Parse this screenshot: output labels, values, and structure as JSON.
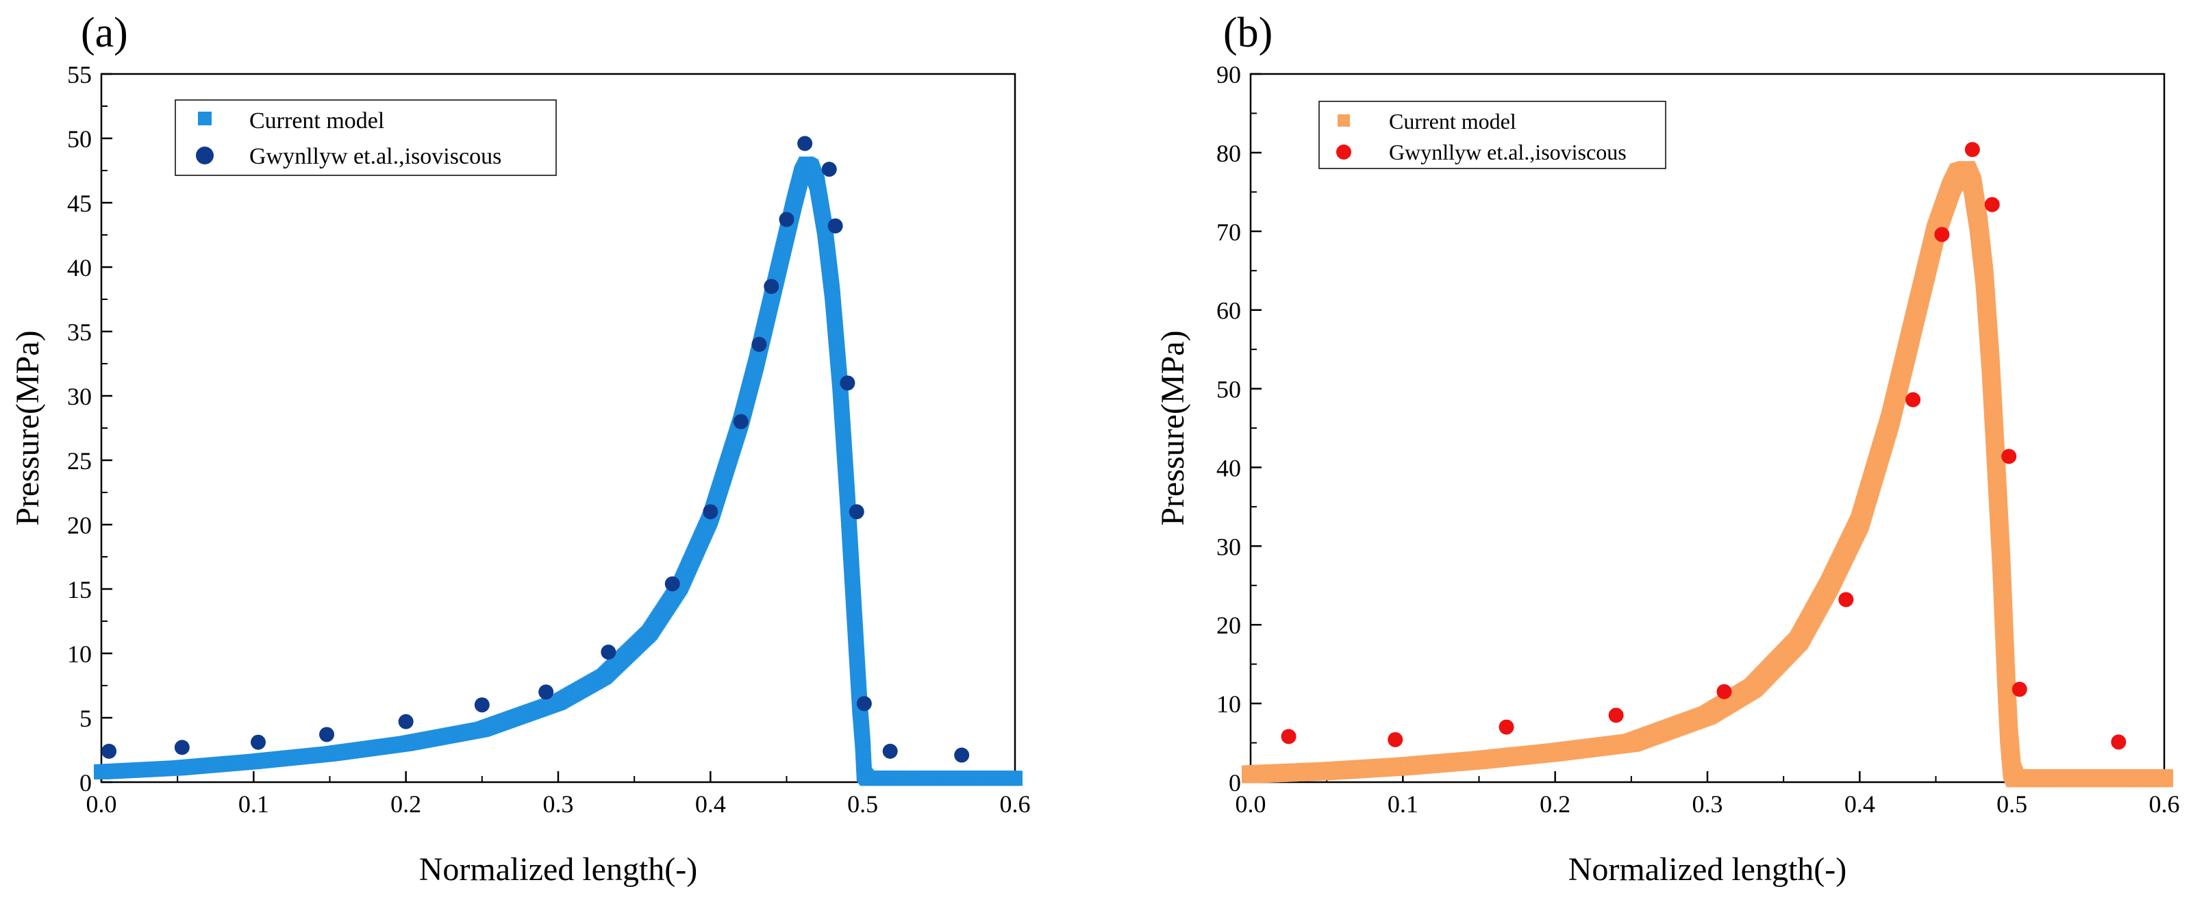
{
  "chart_data": [
    {
      "type": "scatter",
      "panel_label": "(a)",
      "xlabel": "Normalized length(-)",
      "ylabel": "Pressure(MPa)",
      "xlim": [
        0,
        0.6
      ],
      "ylim": [
        0,
        55
      ],
      "x_ticks": [
        0.0,
        0.1,
        0.2,
        0.3,
        0.4,
        0.5,
        0.6
      ],
      "x_tick_labels": [
        "0.0",
        "0.1",
        "0.2",
        "0.3",
        "0.4",
        "0.5",
        "0.6"
      ],
      "y_ticks": [
        0,
        5,
        10,
        15,
        20,
        25,
        30,
        35,
        40,
        45,
        50,
        55
      ],
      "y_tick_labels": [
        "0",
        "5",
        "10",
        "15",
        "20",
        "25",
        "30",
        "35",
        "40",
        "45",
        "50",
        "55"
      ],
      "legend_position": "top-left",
      "series": [
        {
          "name": "Current model",
          "marker": "square",
          "color": "#1f8fe0",
          "x": [
            0.0,
            0.05,
            0.1,
            0.15,
            0.2,
            0.25,
            0.3,
            0.33,
            0.36,
            0.38,
            0.4,
            0.42,
            0.43,
            0.44,
            0.45,
            0.455,
            0.46,
            0.463,
            0.466,
            0.47,
            0.475,
            0.48,
            0.485,
            0.49,
            0.493,
            0.496,
            0.498,
            0.5,
            0.501,
            0.503,
            0.51,
            0.55,
            0.6
          ],
          "y": [
            0.8,
            1.1,
            1.6,
            2.2,
            3.0,
            4.1,
            6.2,
            8.2,
            11.6,
            15.2,
            20.5,
            28.0,
            32.5,
            37.5,
            42.5,
            45.0,
            47.3,
            48.0,
            47.8,
            46.5,
            43.0,
            38.0,
            31.0,
            22.0,
            16.0,
            10.0,
            6.0,
            3.0,
            0.6,
            0.3,
            0.3,
            0.3,
            0.3
          ]
        },
        {
          "name": "Gwynllyw et.al.,isoviscous",
          "marker": "circle",
          "color": "#0f3a8c",
          "x": [
            0.005,
            0.053,
            0.103,
            0.148,
            0.2,
            0.25,
            0.292,
            0.333,
            0.375,
            0.4,
            0.42,
            0.432,
            0.44,
            0.45,
            0.462,
            0.478,
            0.482,
            0.49,
            0.496,
            0.501,
            0.518,
            0.565
          ],
          "y": [
            2.4,
            2.7,
            3.1,
            3.7,
            4.7,
            6.0,
            7.0,
            10.1,
            15.4,
            21.0,
            28.0,
            34.0,
            38.5,
            43.7,
            49.6,
            47.6,
            43.2,
            31.0,
            21.0,
            6.1,
            2.4,
            2.1
          ]
        }
      ]
    },
    {
      "type": "scatter",
      "panel_label": "(b)",
      "xlabel": "Normalized length(-)",
      "ylabel": "Pressure(MPa)",
      "xlim": [
        0,
        0.6
      ],
      "ylim": [
        0,
        90
      ],
      "x_ticks": [
        0.0,
        0.1,
        0.2,
        0.3,
        0.4,
        0.5,
        0.6
      ],
      "x_tick_labels": [
        "0.0",
        "0.1",
        "0.2",
        "0.3",
        "0.4",
        "0.5",
        "0.6"
      ],
      "y_ticks": [
        0,
        10,
        20,
        30,
        40,
        50,
        60,
        70,
        80,
        90
      ],
      "y_tick_labels": [
        "0",
        "10",
        "20",
        "30",
        "40",
        "50",
        "60",
        "70",
        "80",
        "90"
      ],
      "legend_position": "top-left",
      "series": [
        {
          "name": "Current model",
          "marker": "square",
          "color": "#f9a35f",
          "x": [
            0.0,
            0.05,
            0.1,
            0.15,
            0.2,
            0.25,
            0.3,
            0.33,
            0.36,
            0.38,
            0.4,
            0.42,
            0.43,
            0.44,
            0.45,
            0.46,
            0.465,
            0.47,
            0.474,
            0.478,
            0.482,
            0.486,
            0.49,
            0.493,
            0.496,
            0.498,
            0.5,
            0.502,
            0.505,
            0.55,
            0.6
          ],
          "y": [
            1.0,
            1.4,
            2.0,
            2.8,
            3.8,
            5.0,
            8.5,
            12.0,
            18.0,
            25.0,
            33.0,
            46.0,
            54.0,
            62.0,
            70.0,
            75.5,
            77.5,
            77.8,
            76.0,
            71.0,
            64.0,
            53.0,
            39.0,
            28.0,
            14.0,
            6.0,
            1.5,
            0.5,
            0.5,
            0.5,
            0.5
          ]
        },
        {
          "name": "Gwynllyw et.al.,isoviscous",
          "marker": "circle",
          "color": "#ee1111",
          "x": [
            0.025,
            0.095,
            0.168,
            0.24,
            0.311,
            0.391,
            0.435,
            0.454,
            0.474,
            0.487,
            0.498,
            0.505,
            0.57
          ],
          "y": [
            5.8,
            5.4,
            7.0,
            8.5,
            11.5,
            23.2,
            48.6,
            69.6,
            80.4,
            73.4,
            41.4,
            11.8,
            5.1
          ]
        }
      ]
    }
  ]
}
